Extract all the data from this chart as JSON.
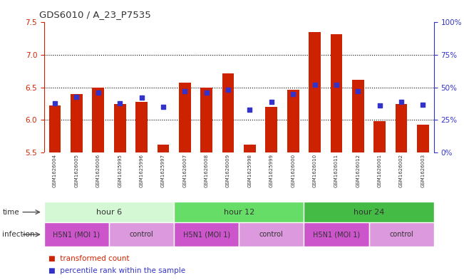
{
  "title": "GDS6010 / A_23_P7535",
  "samples": [
    "GSM1626004",
    "GSM1626005",
    "GSM1626006",
    "GSM1625995",
    "GSM1625996",
    "GSM1625997",
    "GSM1626007",
    "GSM1626008",
    "GSM1626009",
    "GSM1625998",
    "GSM1625999",
    "GSM1626000",
    "GSM1626010",
    "GSM1626011",
    "GSM1626012",
    "GSM1626001",
    "GSM1626002",
    "GSM1626003"
  ],
  "bar_values": [
    6.22,
    6.4,
    6.5,
    6.25,
    6.28,
    5.62,
    6.57,
    6.5,
    6.72,
    5.62,
    6.2,
    6.47,
    7.35,
    7.32,
    6.62,
    5.98,
    6.25,
    5.93
  ],
  "percentile_values": [
    38,
    43,
    46,
    38,
    42,
    35,
    47,
    46,
    48,
    33,
    39,
    45,
    52,
    52,
    47,
    36,
    39,
    37
  ],
  "ylim_left": [
    5.5,
    7.5
  ],
  "ylim_right": [
    0,
    100
  ],
  "yticks_left": [
    5.5,
    6.0,
    6.5,
    7.0,
    7.5
  ],
  "yticks_right": [
    0,
    25,
    50,
    75,
    100
  ],
  "ytick_labels_right": [
    "0%",
    "25%",
    "50%",
    "75%",
    "100%"
  ],
  "hlines": [
    6.0,
    6.5,
    7.0
  ],
  "bar_color": "#cc2200",
  "dot_color": "#3333cc",
  "bar_width": 0.55,
  "time_groups": [
    {
      "label": "hour 6",
      "start": 0,
      "end": 6,
      "color": "#d4f7d4"
    },
    {
      "label": "hour 12",
      "start": 6,
      "end": 12,
      "color": "#66dd66"
    },
    {
      "label": "hour 24",
      "start": 12,
      "end": 18,
      "color": "#44bb44"
    }
  ],
  "infection_groups": [
    {
      "label": "H5N1 (MOI 1)",
      "start": 0,
      "end": 3,
      "color": "#cc55cc"
    },
    {
      "label": "control",
      "start": 3,
      "end": 6,
      "color": "#dd99dd"
    },
    {
      "label": "H5N1 (MOI 1)",
      "start": 6,
      "end": 9,
      "color": "#cc55cc"
    },
    {
      "label": "control",
      "start": 9,
      "end": 12,
      "color": "#dd99dd"
    },
    {
      "label": "H5N1 (MOI 1)",
      "start": 12,
      "end": 15,
      "color": "#cc55cc"
    },
    {
      "label": "control",
      "start": 15,
      "end": 18,
      "color": "#dd99dd"
    }
  ],
  "time_row_label": "time",
  "infection_row_label": "infection",
  "legend_items": [
    {
      "label": "transformed count",
      "color": "#cc2200"
    },
    {
      "label": "percentile rank within the sample",
      "color": "#3333cc"
    }
  ],
  "background_color": "#ffffff",
  "axis_color_left": "#cc2200",
  "axis_color_right": "#3333cc",
  "sample_area_color": "#d8d8d8"
}
